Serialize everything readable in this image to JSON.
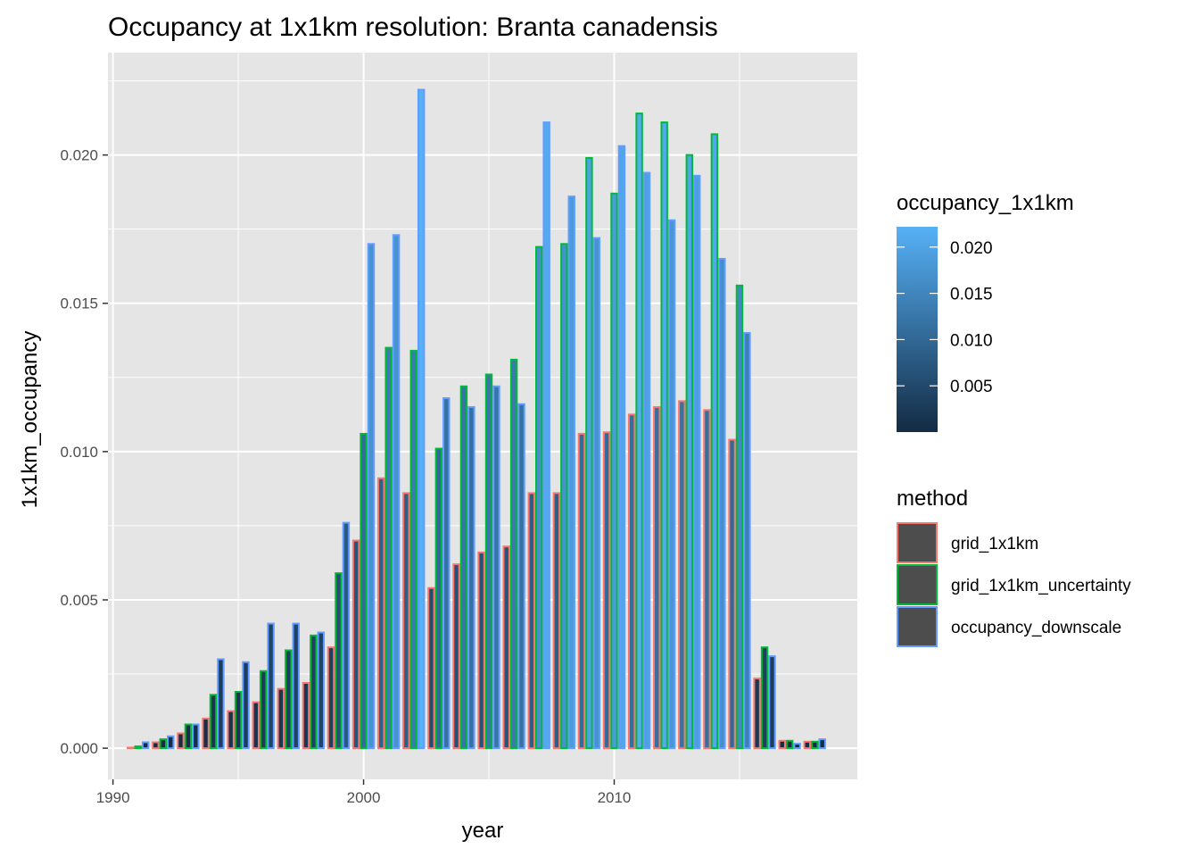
{
  "chart_data": {
    "type": "bar",
    "title": "Occupancy at 1x1km resolution: Branta canadensis",
    "xlabel": "year",
    "ylabel": "1x1km_occupancy",
    "xlim": [
      1989.8,
      2019.7
    ],
    "ylim": [
      -0.00105,
      0.02345
    ],
    "x_ticks": [
      {
        "value": 1990,
        "label": "1990"
      },
      {
        "value": 2000,
        "label": "2000"
      },
      {
        "value": 2010,
        "label": "2010"
      }
    ],
    "y_ticks": [
      {
        "value": 0.0,
        "label": "0.000"
      },
      {
        "value": 0.005,
        "label": "0.005"
      },
      {
        "value": 0.01,
        "label": "0.010"
      },
      {
        "value": 0.015,
        "label": "0.015"
      },
      {
        "value": 0.02,
        "label": "0.020"
      }
    ],
    "grid": true,
    "panel_background": "#e5e5e5",
    "fill_scale": {
      "title": "occupancy_1x1km",
      "low_color": "#132b43",
      "high_color": "#56b1f7",
      "range": [
        0.0,
        0.0222
      ],
      "breaks": [
        {
          "value": 0.02,
          "label": "0.020"
        },
        {
          "value": 0.015,
          "label": "0.015"
        },
        {
          "value": 0.01,
          "label": "0.010"
        },
        {
          "value": 0.005,
          "label": "0.005"
        }
      ]
    },
    "legend_position": "right",
    "legend_key_fill": "#4d4d4d",
    "series": [
      {
        "name": "grid_1x1km",
        "color": "#f8766d",
        "x": [
          1991,
          1992,
          1993,
          1994,
          1995,
          1996,
          1997,
          1998,
          1999,
          2000,
          2001,
          2002,
          2003,
          2004,
          2005,
          2006,
          2007,
          2008,
          2009,
          2010,
          2011,
          2012,
          2013,
          2014,
          2015,
          2016,
          2017,
          2018
        ],
        "values": [
          2e-05,
          0.0002,
          0.0005,
          0.001,
          0.00125,
          0.00155,
          0.002,
          0.0022,
          0.0034,
          0.007,
          0.0091,
          0.0086,
          0.0054,
          0.0062,
          0.0066,
          0.0068,
          0.0086,
          0.0086,
          0.0106,
          0.01065,
          0.01125,
          0.0115,
          0.0117,
          0.0114,
          0.0104,
          0.00235,
          0.00025,
          0.00022
        ]
      },
      {
        "name": "grid_1x1km_uncertainty",
        "color": "#00ba38",
        "x": [
          1991,
          1992,
          1993,
          1994,
          1995,
          1996,
          1997,
          1998,
          1999,
          2000,
          2001,
          2002,
          2003,
          2004,
          2005,
          2006,
          2007,
          2008,
          2009,
          2010,
          2011,
          2012,
          2013,
          2014,
          2015,
          2016,
          2017,
          2018
        ],
        "values": [
          6e-05,
          0.0003,
          0.0008,
          0.0018,
          0.0019,
          0.0026,
          0.0033,
          0.0038,
          0.0059,
          0.0106,
          0.0135,
          0.0134,
          0.0101,
          0.0122,
          0.0126,
          0.0131,
          0.0169,
          0.017,
          0.0199,
          0.0187,
          0.0214,
          0.0211,
          0.02,
          0.0207,
          0.0156,
          0.0034,
          0.00025,
          0.00022
        ]
      },
      {
        "name": "occupancy_downscale",
        "color": "#619cff",
        "x": [
          1991,
          1992,
          1993,
          1994,
          1995,
          1996,
          1997,
          1998,
          1999,
          2000,
          2001,
          2002,
          2003,
          2004,
          2005,
          2006,
          2007,
          2008,
          2009,
          2010,
          2011,
          2012,
          2013,
          2014,
          2015,
          2016,
          2017,
          2018
        ],
        "values": [
          0.0002,
          0.0004,
          0.0008,
          0.003,
          0.0029,
          0.0042,
          0.0042,
          0.0039,
          0.0076,
          0.017,
          0.0173,
          0.0222,
          0.0118,
          0.0115,
          0.0122,
          0.0116,
          0.0211,
          0.0186,
          0.0172,
          0.0203,
          0.0194,
          0.0178,
          0.0193,
          0.0165,
          0.014,
          0.0031,
          0.00015,
          0.0003
        ]
      }
    ]
  }
}
